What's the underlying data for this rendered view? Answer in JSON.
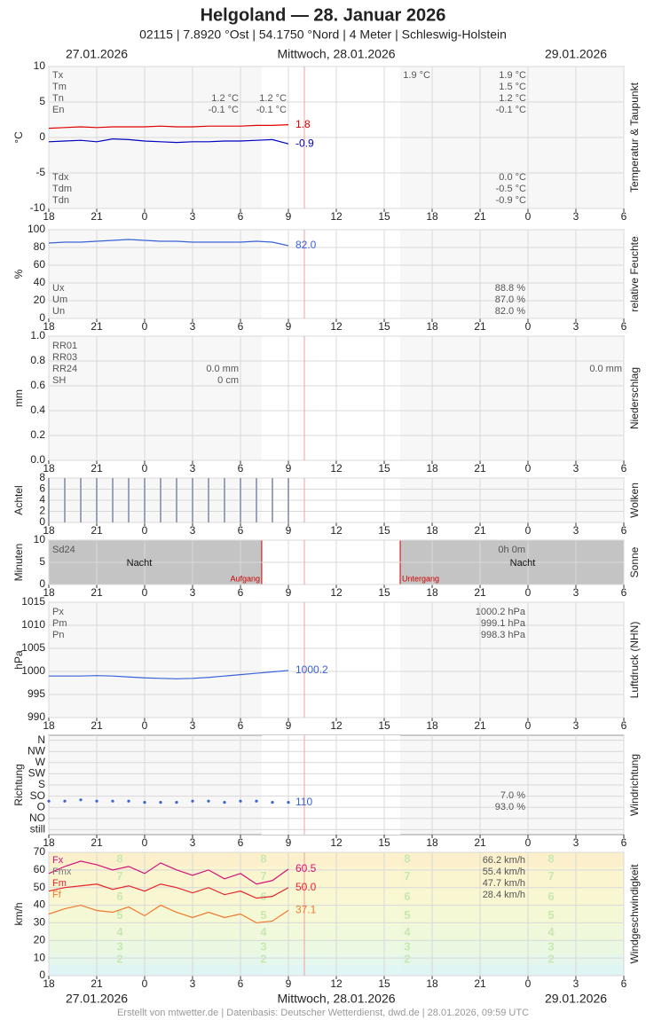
{
  "header": {
    "title": "Helgoland  —  28. Januar 2026",
    "subtitle": "02115  |  7.8920 °Ost  |  54.1750 °Nord  |  4 Meter  |  Schleswig-Holstein",
    "dates": [
      "27.01.2026",
      "Mittwoch, 28.01.2026",
      "29.01.2026"
    ]
  },
  "footer": "Erstellt von mtwetter.de | Datenbasis: Deutscher Wetterdienst, dwd.de | 28.01.2026, 09:59 UTC",
  "x_axis": {
    "xlim": [
      18,
      54
    ],
    "now": 34,
    "xticks": [
      18,
      21,
      {
        "value": 24,
        "label": "0"
      },
      {
        "value": 27,
        "label": "3"
      },
      {
        "value": 30,
        "label": "6"
      },
      {
        "value": 33,
        "label": "9"
      },
      {
        "value": 36,
        "label": "12"
      },
      {
        "value": 39,
        "label": "15"
      },
      {
        "value": 42,
        "label": "18"
      },
      {
        "value": 45,
        "label": "21"
      },
      {
        "value": 48,
        "label": "0"
      },
      {
        "value": 51,
        "label": "3"
      },
      {
        "value": 54,
        "label": "6"
      }
    ]
  },
  "chart_data": [
    {
      "type": "line",
      "ylabel": "°C",
      "side_label": "Temperatur & Taupunkt",
      "ylim": [
        -10,
        10
      ],
      "yticks": [
        -10,
        -5,
        0,
        5,
        10
      ],
      "x": [
        18,
        19,
        20,
        21,
        22,
        23,
        24,
        25,
        26,
        27,
        28,
        29,
        30,
        31,
        32,
        33
      ],
      "series": [
        {
          "color": "#e00000",
          "values": [
            1.3,
            1.4,
            1.5,
            1.4,
            1.5,
            1.5,
            1.5,
            1.6,
            1.5,
            1.5,
            1.6,
            1.6,
            1.6,
            1.7,
            1.7,
            1.8
          ]
        },
        {
          "color": "#0000c0",
          "values": [
            -0.6,
            -0.5,
            -0.4,
            -0.6,
            -0.2,
            -0.3,
            -0.5,
            -0.6,
            -0.7,
            -0.6,
            -0.6,
            -0.5,
            -0.5,
            -0.4,
            -0.3,
            -0.9
          ]
        }
      ],
      "notes": [
        "Tx",
        "Tm",
        "Tn",
        "En",
        "1.2 °C",
        "-0.1 °C",
        "1.2 °C",
        "-0.1 °C",
        "1.9 °C",
        "1.9 °C",
        "1.5 °C",
        "1.2 °C",
        "-0.1 °C",
        "Tdx",
        "Tdm",
        "Tdn",
        "0.0 °C",
        "-0.5 °C",
        "-0.9 °C"
      ]
    },
    {
      "type": "line",
      "ylabel": "%",
      "side_label": "relative Feuchte",
      "ylim": [
        0,
        100
      ],
      "yticks": [
        0,
        20,
        40,
        60,
        80,
        100
      ],
      "x": [
        18,
        19,
        20,
        21,
        22,
        23,
        24,
        25,
        26,
        27,
        28,
        29,
        30,
        31,
        32,
        33
      ],
      "series": [
        {
          "color": "#3a62d8",
          "values": [
            85,
            86,
            86,
            87,
            88,
            89,
            88,
            87,
            87,
            86,
            86,
            86,
            86,
            87,
            86,
            82
          ],
          "value_labels": [
            null,
            null,
            null,
            null,
            null,
            null,
            null,
            null,
            null,
            null,
            null,
            null,
            null,
            null,
            null,
            "82.0"
          ]
        }
      ],
      "notes": [
        "Ux",
        "Um",
        "Un",
        "88.8 %",
        "87.0 %",
        "82.0 %"
      ]
    },
    {
      "type": "bar",
      "ylabel": "mm",
      "side_label": "Niederschlag",
      "ylim": [
        0,
        1
      ],
      "yticks": [
        {
          "value": 0,
          "label": "0.0"
        },
        0.2,
        0.4,
        0.6,
        0.8,
        {
          "value": 1,
          "label": "1.0"
        }
      ],
      "x": [
        18,
        19,
        20,
        21,
        22,
        23,
        24,
        25,
        26,
        27,
        28,
        29,
        30,
        31,
        32,
        33
      ],
      "color": "#3a62d8",
      "values": [
        0,
        0,
        0,
        0,
        0,
        0,
        0,
        0,
        0,
        0,
        0,
        0,
        0,
        0,
        0,
        0
      ],
      "notes": [
        "RR01",
        "RR03",
        "RR24",
        "SH",
        "0.0 mm",
        "0 cm",
        "0.0 mm"
      ]
    },
    {
      "type": "bar",
      "ylabel": "Achtel",
      "side_label": "Wolken",
      "ylim": [
        0,
        8
      ],
      "yticks": [
        0,
        2,
        4,
        6,
        8
      ],
      "x": [
        18,
        19,
        20,
        21,
        22,
        23,
        24,
        25,
        26,
        27,
        28,
        29,
        30,
        31,
        32,
        33
      ],
      "color": "#9aa4b8",
      "values": [
        8,
        8,
        8,
        8,
        8,
        8,
        8,
        8,
        8,
        8,
        8,
        8,
        8,
        8,
        8,
        8
      ],
      "notes": []
    },
    {
      "type": "sun",
      "ylabel": "Minuten",
      "side_label": "Sonne",
      "ylim": [
        0,
        10
      ],
      "yticks": [
        0,
        5,
        10
      ],
      "sunrise": 31.33,
      "sunset": 40,
      "notes": [
        "Sd24",
        "Nacht",
        "Nacht",
        "0h 0m",
        "Aufgang",
        "Untergang"
      ]
    },
    {
      "type": "line",
      "ylabel": "hPa",
      "side_label": "Luftdruck (NHN)",
      "ylim": [
        990,
        1015
      ],
      "yticks": [
        990,
        995,
        1000,
        1005,
        1010,
        1015
      ],
      "x": [
        18,
        19,
        20,
        21,
        22,
        23,
        24,
        25,
        26,
        27,
        28,
        29,
        30,
        31,
        32,
        33
      ],
      "series": [
        {
          "color": "#3a62d8",
          "values": [
            999,
            999,
            999,
            999.1,
            999,
            998.8,
            998.6,
            998.5,
            998.4,
            998.5,
            998.7,
            999,
            999.3,
            999.6,
            999.9,
            1000.2
          ]
        }
      ],
      "notes": [
        "Px",
        "Pm",
        "Pn",
        "1000.2 hPa",
        "999.1 hPa",
        "998.3 hPa"
      ]
    },
    {
      "type": "scatter",
      "ylabel": "Richtung",
      "side_label": "Windrichtung",
      "ylim": [
        -20,
        380
      ],
      "yticks": [
        {
          "value": 0,
          "label": "still"
        },
        {
          "value": 45,
          "label": "NO"
        },
        {
          "value": 90,
          "label": "O"
        },
        {
          "value": 135,
          "label": "SO"
        },
        {
          "value": 180,
          "label": "S"
        },
        {
          "value": 225,
          "label": "SW"
        },
        {
          "value": 270,
          "label": "W"
        },
        {
          "value": 315,
          "label": "NW"
        },
        {
          "value": 360,
          "label": "N"
        }
      ],
      "x": [
        18,
        19,
        20,
        21,
        22,
        23,
        24,
        25,
        26,
        27,
        28,
        29,
        30,
        31,
        32,
        33
      ],
      "series": [
        {
          "color": "#3a62d8",
          "values": [
            115,
            115,
            120,
            115,
            115,
            115,
            110,
            110,
            110,
            115,
            115,
            110,
            115,
            115,
            110,
            110
          ]
        }
      ],
      "notes": [
        "7.0 %",
        "93.0 %"
      ]
    },
    {
      "type": "line",
      "ylabel": "km/h",
      "side_label": "Windgeschwindigkeit",
      "ylim": [
        0,
        70
      ],
      "yticks": [
        0,
        10,
        20,
        30,
        40,
        50,
        60,
        70
      ],
      "beaufort": {
        "levels": [
          2,
          3,
          4,
          5,
          6,
          7,
          8
        ],
        "bounds": [
          6,
          12,
          20,
          29,
          39,
          50,
          62,
          75
        ]
      },
      "x": [
        18,
        19,
        20,
        21,
        22,
        23,
        24,
        25,
        26,
        27,
        28,
        29,
        30,
        31,
        32,
        33
      ],
      "series": [
        {
          "color": "#d0147a",
          "values": [
            58,
            62,
            65,
            63,
            60,
            62,
            58,
            64,
            60,
            57,
            60,
            55,
            58,
            52,
            54,
            60.5
          ]
        },
        {
          "color": "#e8242c",
          "values": [
            48,
            50,
            51,
            52,
            49,
            51,
            48,
            52,
            50,
            47,
            50,
            46,
            48,
            44,
            45,
            50
          ],
          "value_labels": [
            null,
            null,
            null,
            null,
            null,
            null,
            null,
            null,
            null,
            null,
            null,
            null,
            null,
            null,
            null,
            "50.0"
          ]
        },
        {
          "color": "#f07830",
          "values": [
            35,
            38,
            40,
            37,
            36,
            39,
            34,
            40,
            36,
            33,
            36,
            33,
            35,
            30,
            31,
            37.1
          ]
        }
      ],
      "notes": [
        "Fx",
        "Fmx",
        "Fm",
        "Ff",
        "66.2 km/h",
        "55.4 km/h",
        "47.7 km/h",
        "28.4 km/h"
      ]
    }
  ]
}
